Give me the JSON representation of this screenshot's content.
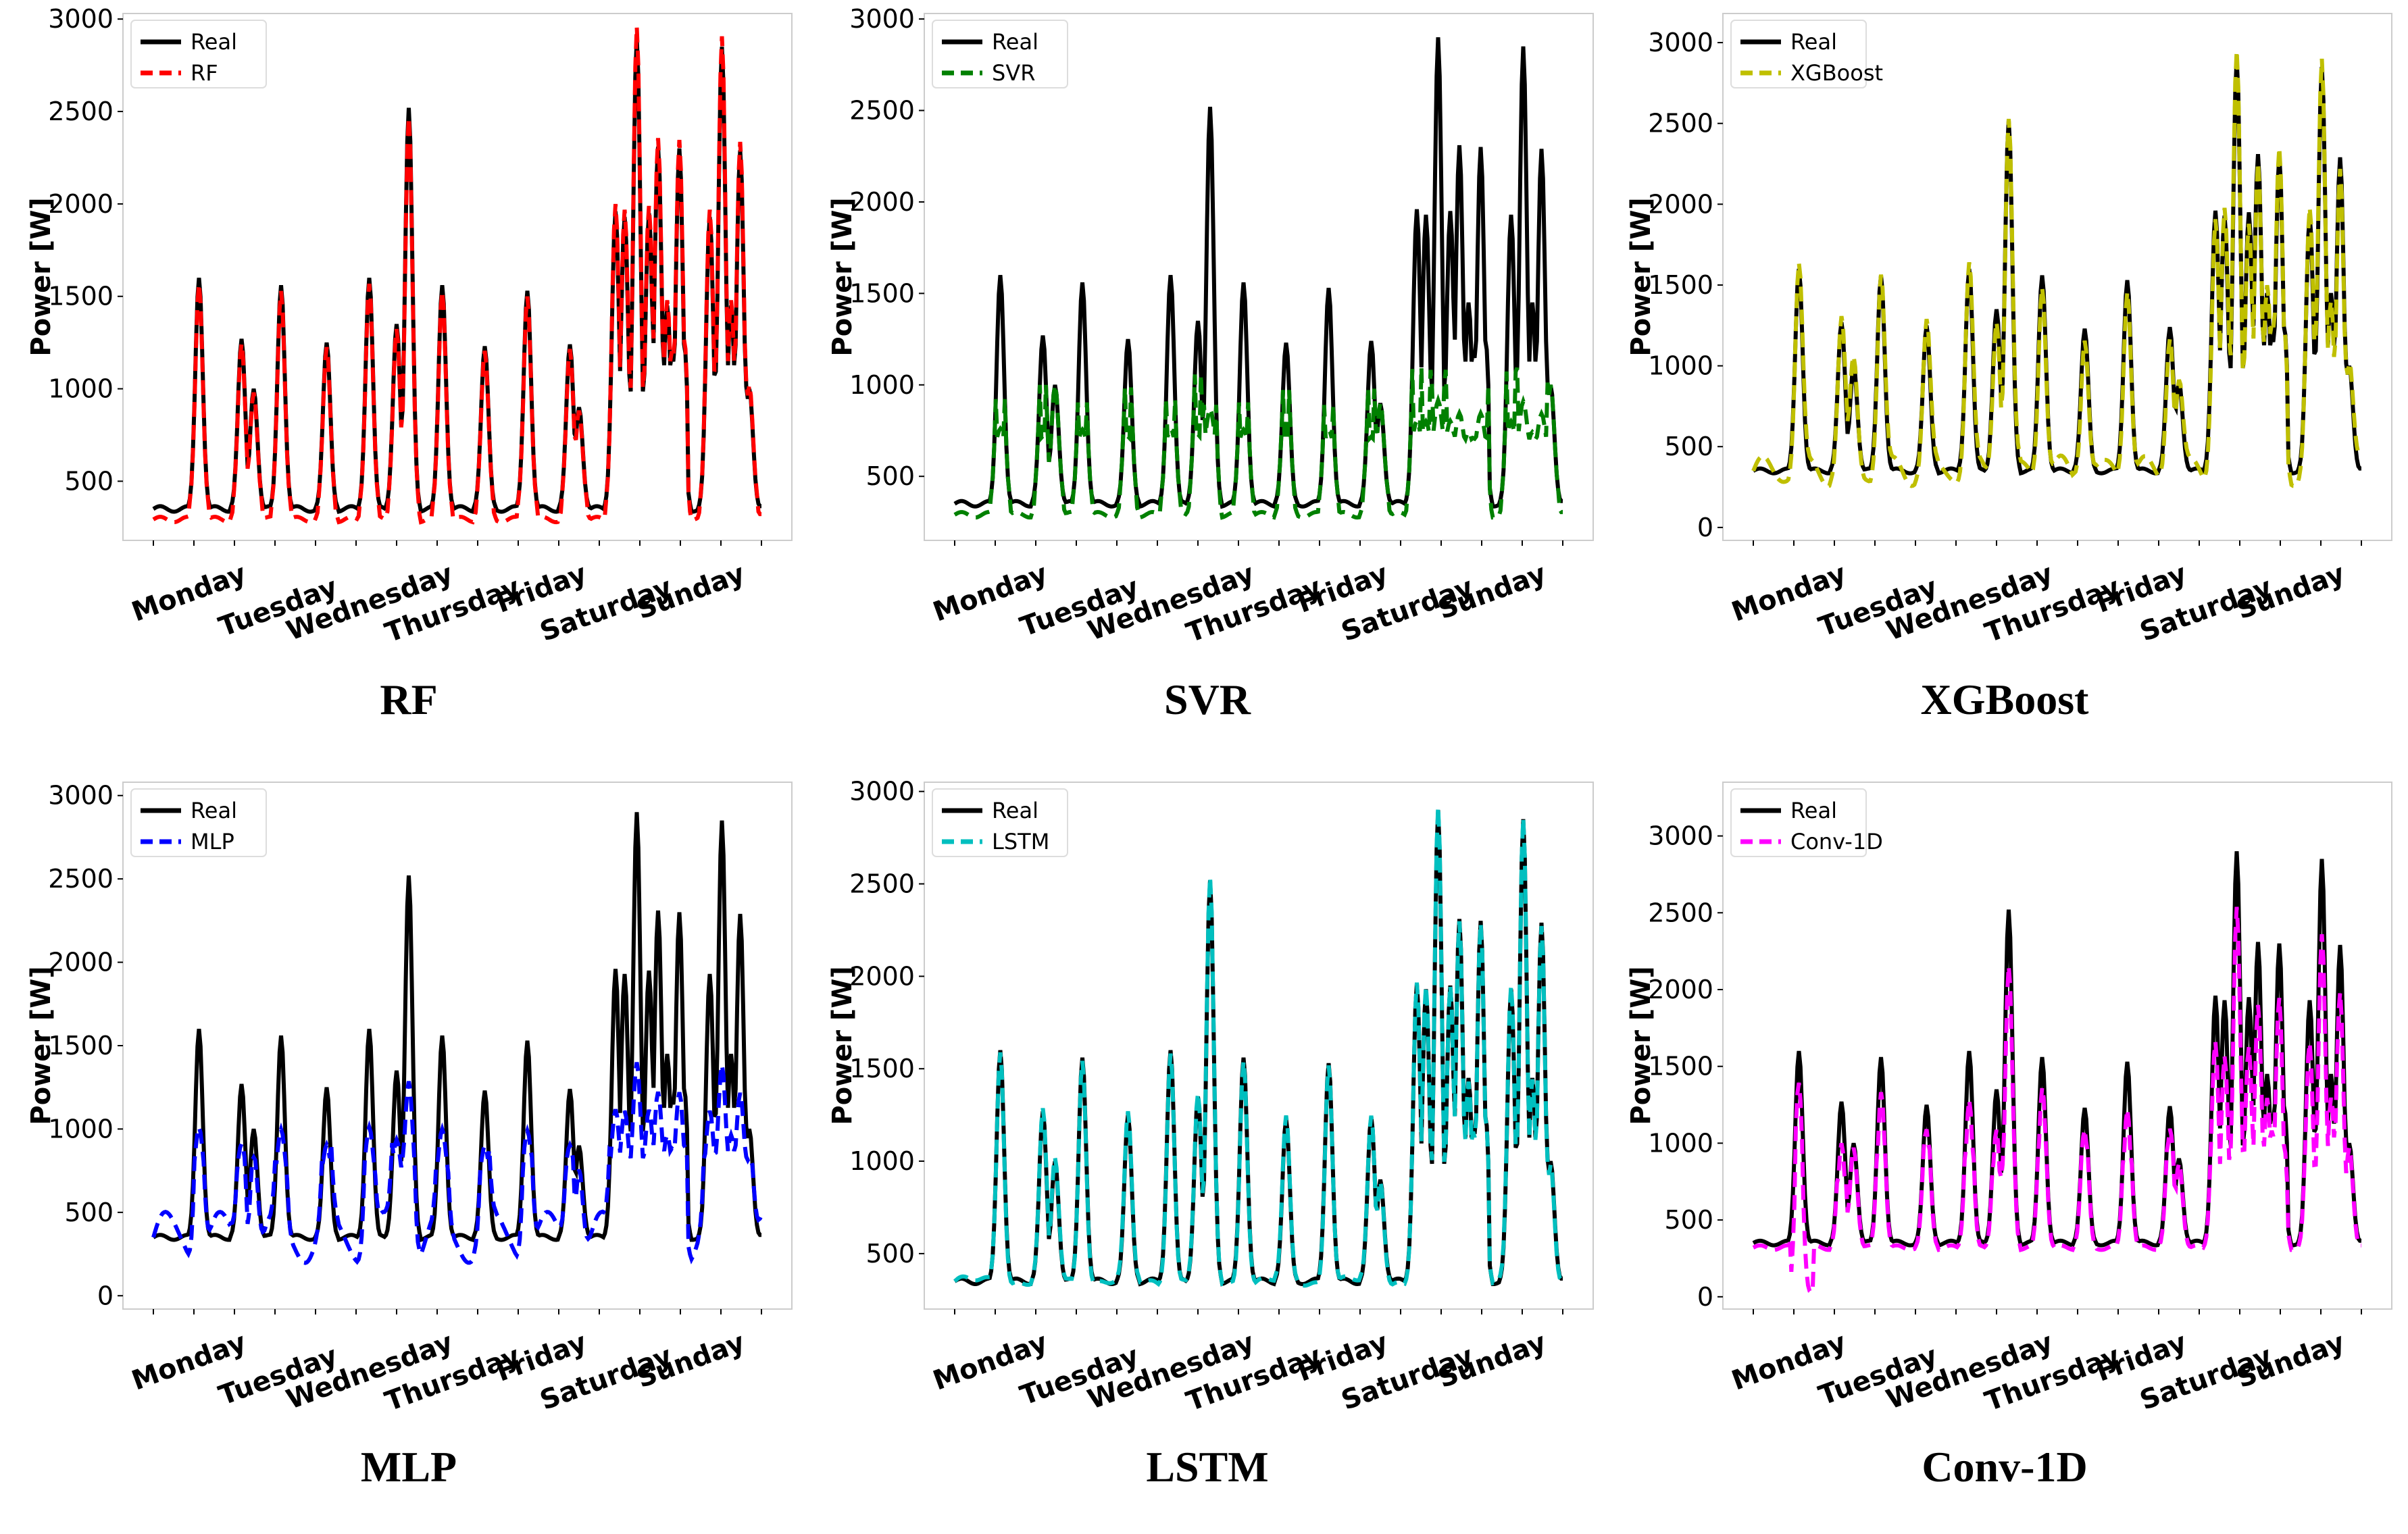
{
  "figure": {
    "background": "#ffffff",
    "real_color": "#000000"
  },
  "chart_data": [
    {
      "type": "line",
      "caption": "RF",
      "ylabel": "Power [W]",
      "ylim": [
        180,
        3030
      ],
      "yticks": [
        500,
        1000,
        1500,
        2000,
        2500,
        3000
      ],
      "day_labels": [
        "Monday",
        "Tuesday",
        "Wednesday",
        "Thursday",
        "Friday",
        "Saturday",
        "Sunday"
      ],
      "series": [
        {
          "name": "Real",
          "color": "#000000",
          "style": "solid"
        },
        {
          "name": "RF",
          "color": "#ff0000",
          "style": "dashed"
        }
      ]
    },
    {
      "type": "line",
      "caption": "SVR",
      "ylabel": "Power [W]",
      "ylim": [
        150,
        3030
      ],
      "yticks": [
        500,
        1000,
        1500,
        2000,
        2500,
        3000
      ],
      "day_labels": [
        "Monday",
        "Tuesday",
        "Wednesday",
        "Thursday",
        "Friday",
        "Saturday",
        "Sunday"
      ],
      "series": [
        {
          "name": "Real",
          "color": "#000000",
          "style": "solid"
        },
        {
          "name": "SVR",
          "color": "#008000",
          "style": "dashed"
        }
      ]
    },
    {
      "type": "line",
      "caption": "XGBoost",
      "ylabel": "Power [W]",
      "ylim": [
        -80,
        3180
      ],
      "yticks": [
        0,
        500,
        1000,
        1500,
        2000,
        2500,
        3000
      ],
      "day_labels": [
        "Monday",
        "Tuesday",
        "Wednesday",
        "Thursday",
        "Friday",
        "Saturday",
        "Sunday"
      ],
      "series": [
        {
          "name": "Real",
          "color": "#000000",
          "style": "solid"
        },
        {
          "name": "XGBoost",
          "color": "#bfbf00",
          "style": "dashed"
        }
      ]
    },
    {
      "type": "line",
      "caption": "MLP",
      "ylabel": "Power [W]",
      "ylim": [
        -80,
        3080
      ],
      "yticks": [
        0,
        500,
        1000,
        1500,
        2000,
        2500,
        3000
      ],
      "day_labels": [
        "Monday",
        "Tuesday",
        "Wednesday",
        "Thursday",
        "Friday",
        "Saturday",
        "Sunday"
      ],
      "series": [
        {
          "name": "Real",
          "color": "#000000",
          "style": "solid"
        },
        {
          "name": "MLP",
          "color": "#0000ff",
          "style": "dashed"
        }
      ]
    },
    {
      "type": "line",
      "caption": "LSTM",
      "ylabel": "Power [W]",
      "ylim": [
        200,
        3050
      ],
      "yticks": [
        500,
        1000,
        1500,
        2000,
        2500,
        3000
      ],
      "day_labels": [
        "Monday",
        "Tuesday",
        "Wednesday",
        "Thursday",
        "Friday",
        "Saturday",
        "Sunday"
      ],
      "series": [
        {
          "name": "Real",
          "color": "#000000",
          "style": "solid"
        },
        {
          "name": "LSTM",
          "color": "#00bfbf",
          "style": "dashed"
        }
      ]
    },
    {
      "type": "line",
      "caption": "Conv-1D",
      "ylabel": "Power [W]",
      "ylim": [
        -80,
        3350
      ],
      "yticks": [
        0,
        500,
        1000,
        1500,
        2000,
        2500,
        3000
      ],
      "day_labels": [
        "Monday",
        "Tuesday",
        "Wednesday",
        "Thursday",
        "Friday",
        "Saturday",
        "Sunday"
      ],
      "series": [
        {
          "name": "Real",
          "color": "#000000",
          "style": "solid"
        },
        {
          "name": "Conv-1D",
          "color": "#ff00ff",
          "style": "dashed"
        }
      ]
    }
  ]
}
